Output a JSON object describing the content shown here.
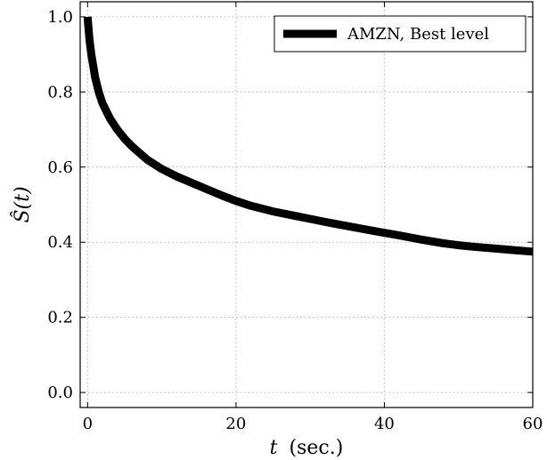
{
  "chart_data": {
    "type": "line",
    "xlabel_var": "t",
    "xlabel_unit": "(sec.)",
    "ylabel": "Ŝ(t)",
    "xlim": [
      -1,
      60
    ],
    "ylim": [
      -0.04,
      1.04
    ],
    "xticks": [
      0,
      20,
      40,
      60
    ],
    "xtick_labels": [
      "0",
      "20",
      "40",
      "60"
    ],
    "yticks": [
      0.0,
      0.2,
      0.4,
      0.6,
      0.8,
      1.0
    ],
    "ytick_labels": [
      "0.0",
      "0.2",
      "0.4",
      "0.6",
      "0.8",
      "1.0"
    ],
    "grid": true,
    "legend_position": "top-right",
    "series": [
      {
        "name": "AMZN, Best level",
        "color": "#000000",
        "x": [
          0,
          0.25,
          0.5,
          1,
          1.5,
          2,
          3,
          4,
          5,
          6,
          8,
          10,
          12,
          15,
          18,
          20,
          22,
          25,
          28,
          30,
          32,
          35,
          38,
          40,
          42,
          45,
          48,
          50,
          52,
          55,
          58,
          60
        ],
        "y": [
          1.0,
          0.94,
          0.9,
          0.84,
          0.8,
          0.77,
          0.73,
          0.7,
          0.675,
          0.655,
          0.62,
          0.595,
          0.575,
          0.55,
          0.525,
          0.51,
          0.497,
          0.482,
          0.47,
          0.462,
          0.454,
          0.443,
          0.432,
          0.425,
          0.418,
          0.407,
          0.397,
          0.392,
          0.388,
          0.383,
          0.378,
          0.375
        ]
      }
    ]
  }
}
